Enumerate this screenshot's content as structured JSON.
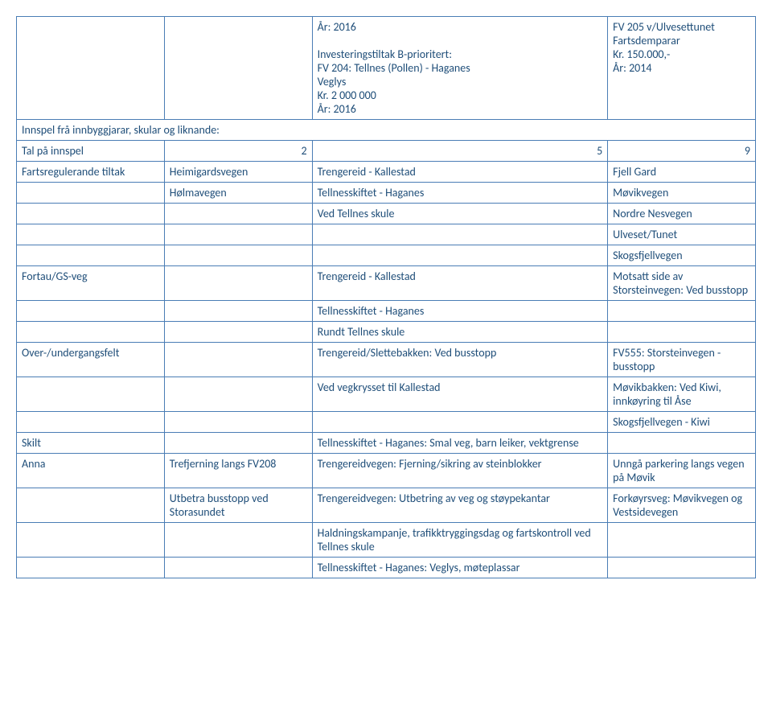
{
  "colors": {
    "border": "#4a7db5",
    "text": "#1f4e79",
    "background": "#ffffff"
  },
  "font": {
    "family": "Calibri, Arial, sans-serif",
    "size": 14
  },
  "top_block": {
    "left": "År: 2016\n\nInvesteringstiltak B-prioritert:\nFV 204: Tellnes (Pollen) - Haganes\nVeglys\nKr. 2 000 000\nÅr: 2016",
    "right": "FV 205 v/Ulvesettunet\nFartsdemparar\nKr. 150.000,-\nÅr: 2014"
  },
  "section_heading": "Innspel frå innbyggjarar, skular og liknande:",
  "tal_row": {
    "label": "Tal på innspel",
    "n1": "2",
    "n2": "5",
    "n3": "9"
  },
  "rows": [
    {
      "c1": "Fartsregulerande tiltak",
      "c2": "Heimigardsvegen",
      "c3": "Trengereid - Kallestad",
      "c5": "Fjell Gard"
    },
    {
      "c1": "",
      "c2": "Hølmavegen",
      "c3": "Tellnesskiftet - Haganes",
      "c5": "Møvikvegen"
    },
    {
      "c1": "",
      "c2": "",
      "c3": "Ved Tellnes skule",
      "c5": "Nordre Nesvegen"
    },
    {
      "c1": "",
      "c2": "",
      "c3": "",
      "c5": "Ulveset/Tunet"
    },
    {
      "c1": "",
      "c2": "",
      "c3": "",
      "c5": "Skogsfjellvegen"
    },
    {
      "c1": "Fortau/GS-veg",
      "c2": "",
      "c3": "Trengereid - Kallestad",
      "c5": "Motsatt side av Storsteinvegen: Ved busstopp"
    },
    {
      "c1": "",
      "c2": "",
      "c3": "Tellnesskiftet - Haganes",
      "c5": ""
    },
    {
      "c1": "",
      "c2": "",
      "c3": "Rundt Tellnes skule",
      "c5": ""
    },
    {
      "c1": "Over-/undergangsfelt",
      "c2": "",
      "c3": "Trengereid/Slettebakken: Ved busstopp",
      "c5": "FV555: Storsteinvegen - busstopp"
    },
    {
      "c1": "",
      "c2": "",
      "c3": "Ved vegkrysset til Kallestad",
      "c5": "Møvikbakken: Ved Kiwi, innkøyring til Åse"
    },
    {
      "c1": "",
      "c2": "",
      "c3": "",
      "c5": "Skogsfjellvegen - Kiwi"
    },
    {
      "c1": "Skilt",
      "c2": "",
      "c3": "Tellnesskiftet - Haganes: Smal veg, barn leiker, vektgrense",
      "c5": ""
    },
    {
      "c1": "Anna",
      "c2": "Trefjerning langs FV208",
      "c3": "Trengereidvegen: Fjerning/sikring av steinblokker",
      "c5": "Unngå parkering langs vegen på Møvik"
    },
    {
      "c1": "",
      "c2": "Utbetra busstopp ved Storasundet",
      "c3": "Trengereidvegen: Utbetring av veg og støypekantar",
      "c5": "Forkøyrsveg: Møvikvegen og Vestsidevegen"
    },
    {
      "c1": "",
      "c2": "",
      "c3": "Haldningskampanje, trafikktryggingsdag og fartskontroll ved Tellnes skule",
      "c5": ""
    },
    {
      "c1": "",
      "c2": "",
      "c3": "Tellnesskiftet - Haganes: Veglys, møteplassar",
      "c5": ""
    }
  ]
}
